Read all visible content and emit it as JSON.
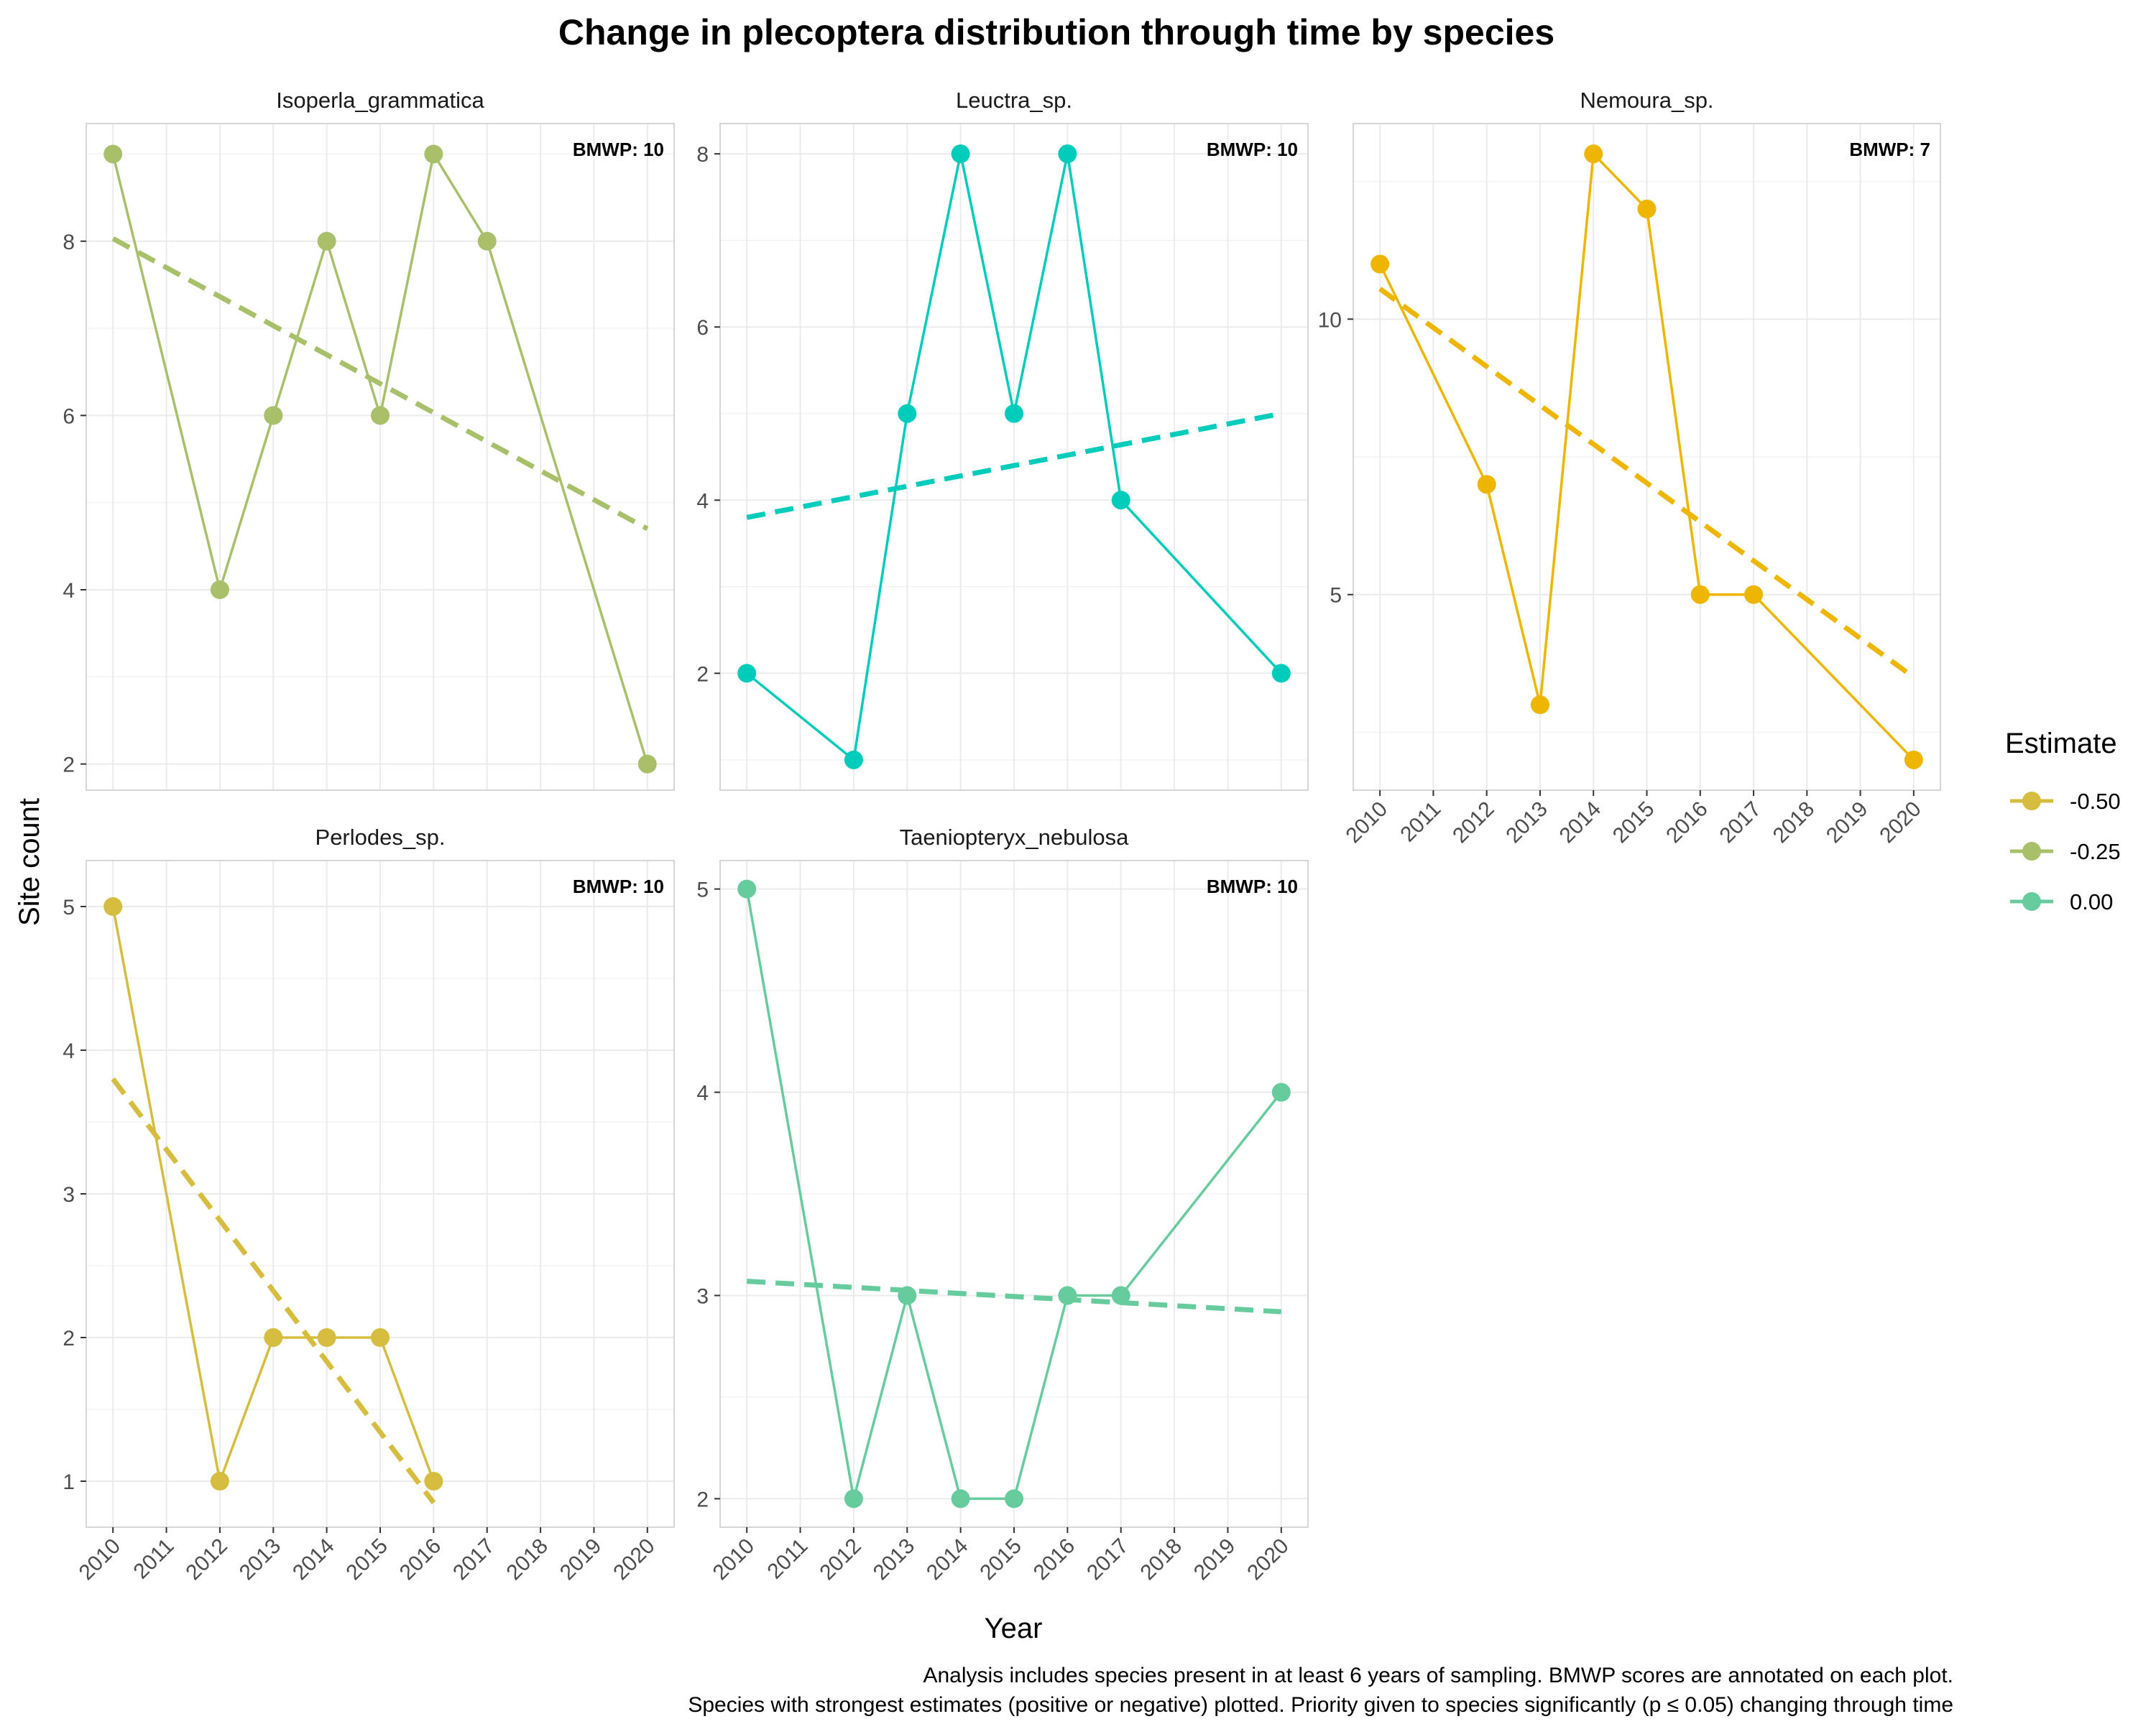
{
  "title": "Change in plecoptera distribution through time by species",
  "xlabel": "Year",
  "ylabel": "Site count",
  "legend": {
    "title": "Estimate",
    "position": "right",
    "entries": [
      {
        "label": "-0.50",
        "color": "#D6BD3F"
      },
      {
        "label": "-0.25",
        "color": "#A9C06A"
      },
      {
        "label": "0.00",
        "color": "#66CC9E"
      }
    ]
  },
  "caption": [
    "Analysis includes species present in at least 6 years of sampling. BMWP scores are annotated on each plot.",
    "Species with strongest estimates (positive or negative) plotted. Priority given to species significantly (p ≤ 0.05) changing through time"
  ],
  "chart_data": {
    "type": "line",
    "facets": [
      {
        "name": "Isoperla_grammatica",
        "bmwp": "BMWP: 10",
        "color": "#A9C06A",
        "x": [
          2010,
          2012,
          2013,
          2014,
          2015,
          2016,
          2017,
          2020
        ],
        "y": [
          9,
          4,
          6,
          8,
          6,
          9,
          8,
          2
        ],
        "trend": {
          "x": [
            2010,
            2020
          ],
          "y": [
            8.03,
            4.7
          ]
        },
        "ylim": [
          1.7,
          9.35
        ],
        "yticks": [
          2,
          4,
          6,
          8
        ],
        "xticks_shown": false
      },
      {
        "name": "Leuctra_sp.",
        "bmwp": "BMWP: 10",
        "color": "#00CCBB",
        "x": [
          2010,
          2012,
          2013,
          2014,
          2015,
          2016,
          2017,
          2020
        ],
        "y": [
          2,
          1,
          5,
          8,
          5,
          8,
          4,
          2
        ],
        "trend": {
          "x": [
            2010,
            2020
          ],
          "y": [
            3.8,
            5.0
          ]
        },
        "ylim": [
          0.65,
          8.35
        ],
        "yticks": [
          2,
          4,
          6,
          8
        ],
        "xticks_shown": false
      },
      {
        "name": "Nemoura_sp.",
        "bmwp": "BMWP: 7",
        "color": "#EEB600",
        "x": [
          2010,
          2012,
          2013,
          2014,
          2015,
          2016,
          2017,
          2020
        ],
        "y": [
          11,
          7,
          3,
          13,
          12,
          5,
          5,
          2
        ],
        "trend": {
          "x": [
            2010,
            2020
          ],
          "y": [
            10.55,
            3.5
          ]
        },
        "ylim": [
          1.45,
          13.55
        ],
        "yticks": [
          5,
          10
        ],
        "xticks_shown": true
      },
      {
        "name": "Perlodes_sp.",
        "bmwp": "BMWP: 10",
        "color": "#D6BD3F",
        "x": [
          2010,
          2012,
          2013,
          2014,
          2015,
          2016
        ],
        "y": [
          5,
          1,
          2,
          2,
          2,
          1
        ],
        "trend": {
          "x": [
            2010,
            2016
          ],
          "y": [
            3.8,
            0.85
          ]
        },
        "ylim": [
          0.68,
          5.32
        ],
        "yticks": [
          1,
          2,
          3,
          4,
          5
        ],
        "xticks_shown": true
      },
      {
        "name": "Taeniopteryx_nebulosa",
        "bmwp": "BMWP: 10",
        "color": "#66CC9E",
        "x": [
          2010,
          2012,
          2013,
          2014,
          2015,
          2016,
          2017,
          2020
        ],
        "y": [
          5,
          2,
          3,
          2,
          2,
          3,
          3,
          4
        ],
        "trend": {
          "x": [
            2010,
            2020
          ],
          "y": [
            3.07,
            2.92
          ]
        },
        "ylim": [
          1.86,
          5.14
        ],
        "yticks": [
          2,
          3,
          4,
          5
        ],
        "xticks_shown": true
      }
    ],
    "xlim": [
      2009.5,
      2020.5
    ],
    "xticks": [
      2010,
      2011,
      2012,
      2013,
      2014,
      2015,
      2016,
      2017,
      2018,
      2019,
      2020
    ],
    "grid": true
  }
}
